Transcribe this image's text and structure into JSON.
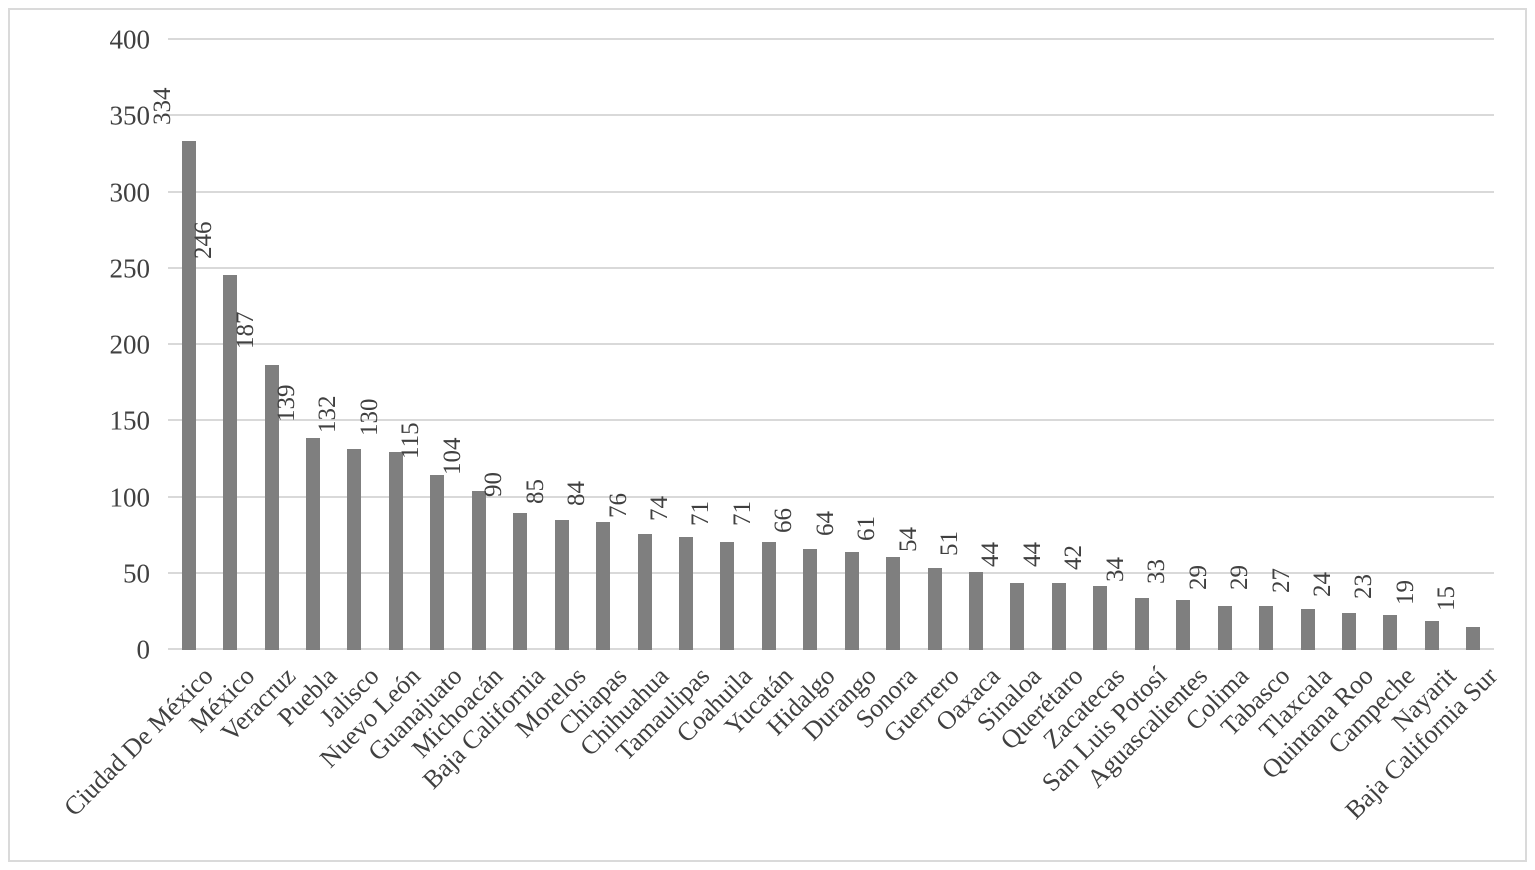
{
  "chart_data": {
    "type": "bar",
    "title": "",
    "xlabel": "",
    "ylabel": "",
    "categories": [
      "Ciudad De México",
      "México",
      "Veracruz",
      "Puebla",
      "Jalisco",
      "Nuevo León",
      "Guanajuato",
      "Michoacán",
      "Baja California",
      "Morelos",
      "Chiapas",
      "Chihuahua",
      "Tamaulipas",
      "Coahuila",
      "Yucatán",
      "Hidalgo",
      "Durango",
      "Sonora",
      "Guerrero",
      "Oaxaca",
      "Sinaloa",
      "Querétaro",
      "Zacatecas",
      "San Luis Potosí",
      "Aguascalientes",
      "Colima",
      "Tabasco",
      "Tlaxcala",
      "Quintana Roo",
      "Campeche",
      "Nayarit",
      "Baja California Sur"
    ],
    "values": [
      334,
      246,
      187,
      139,
      132,
      130,
      115,
      104,
      90,
      85,
      84,
      76,
      74,
      71,
      71,
      66,
      64,
      61,
      54,
      51,
      44,
      44,
      42,
      34,
      33,
      29,
      29,
      27,
      24,
      23,
      19,
      15
    ],
    "ylim": [
      0,
      400
    ],
    "yticks": [
      0,
      50,
      100,
      150,
      200,
      250,
      300,
      350,
      400
    ],
    "grid": true,
    "legend": false,
    "data_labels": true,
    "value_label_rotation": 90,
    "category_label_rotation": 45,
    "colors": {
      "bar": "#7F7F7F",
      "gridline": "#D9D9D9",
      "border": "#DADADA",
      "text": "#404040",
      "background": "#FFFFFF"
    }
  }
}
